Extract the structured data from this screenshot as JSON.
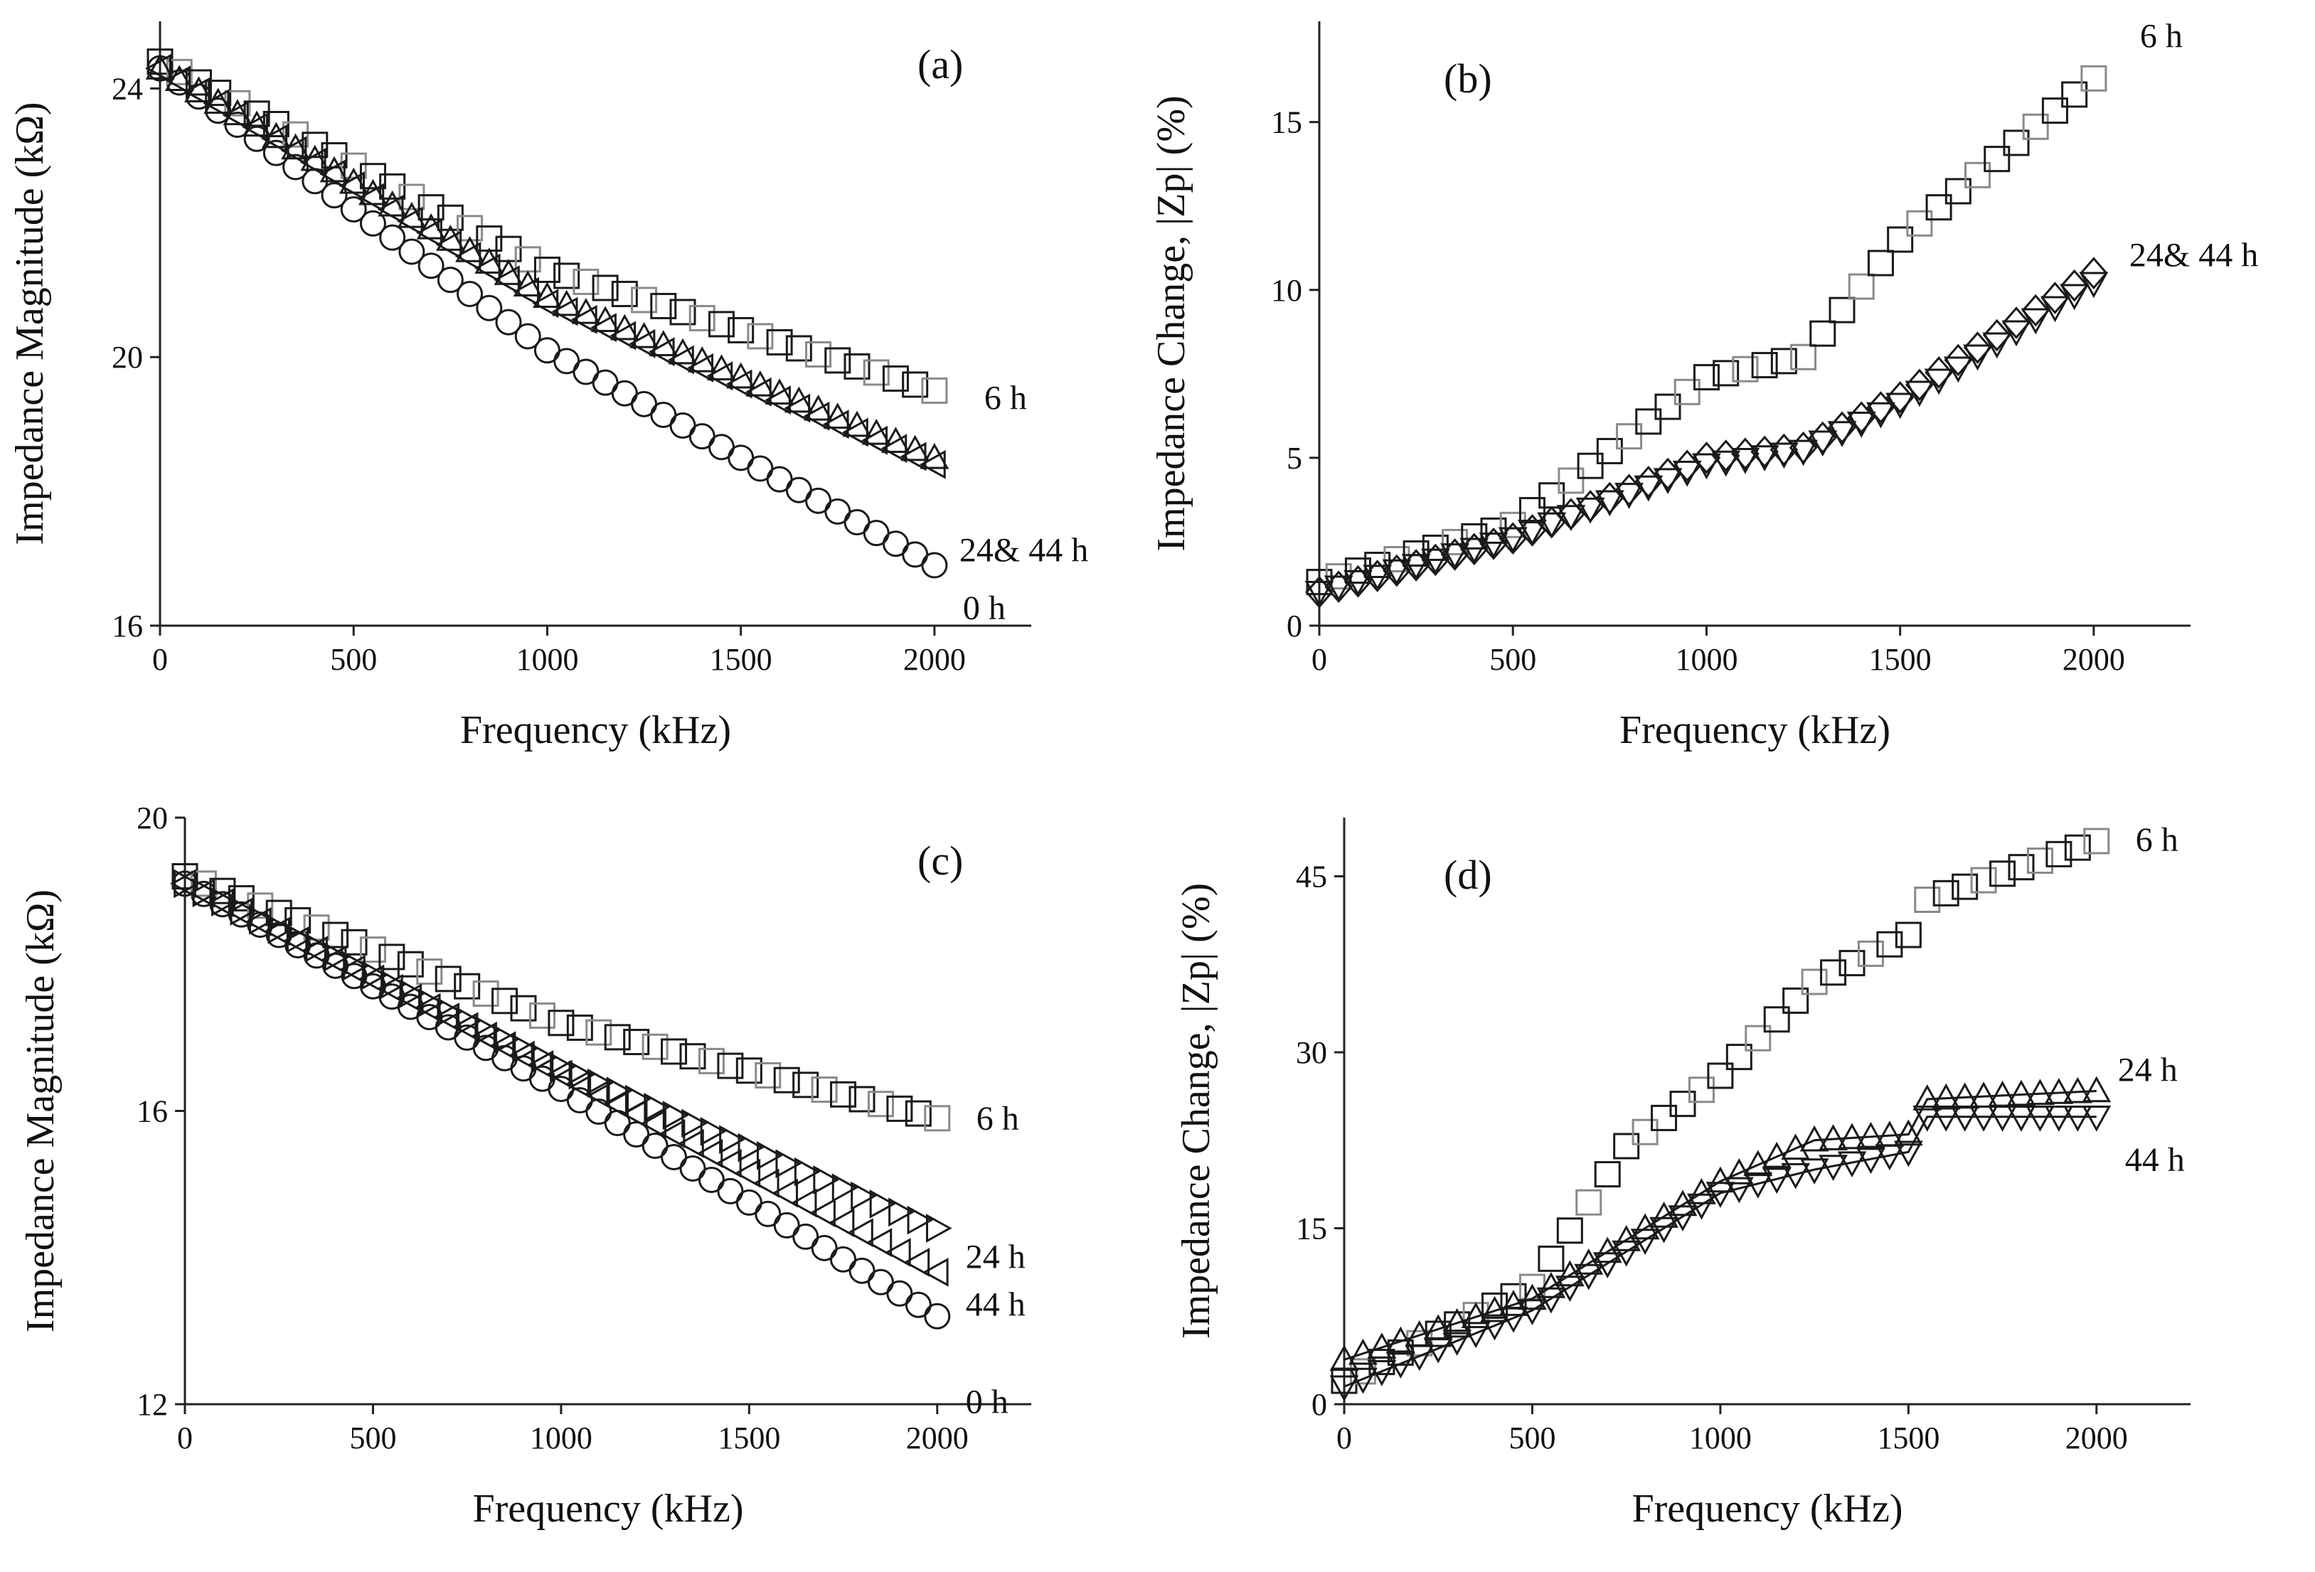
{
  "chart_data": [
    {
      "id": "a",
      "type": "scatter",
      "panel_label": "(a)",
      "xlabel": "Frequency (kHz)",
      "ylabel": "Impedance Magnitude (kΩ)",
      "xlim": [
        0,
        2250
      ],
      "ylim": [
        16,
        25
      ],
      "xticks": [
        "0",
        "500",
        "1000",
        "1500",
        "2000"
      ],
      "yticks": [
        "16",
        "20",
        "24"
      ],
      "series": [
        {
          "name": "0 h",
          "marker": "circle",
          "x": [
            0,
            2000
          ],
          "y": [
            24.3,
            16.9
          ],
          "mid": [
            [
              1000,
              20.1
            ]
          ],
          "label": "0 h"
        },
        {
          "name": "6 h",
          "marker": "square",
          "x": [
            0,
            2000
          ],
          "y": [
            24.4,
            19.5
          ],
          "mid": [
            [
              1000,
              21.3
            ]
          ],
          "label": "6 h"
        },
        {
          "name": "24 h",
          "marker": "triangle-up",
          "x": [
            0,
            2000
          ],
          "y": [
            24.3,
            18.5
          ],
          "mid": [
            [
              1000,
              20.9
            ]
          ],
          "label": ""
        },
        {
          "name": "44 h",
          "marker": "triangle-left",
          "x": [
            0,
            2000
          ],
          "y": [
            24.3,
            18.4
          ],
          "mid": [
            [
              1000,
              20.8
            ]
          ],
          "label": "24& 44 h"
        }
      ]
    },
    {
      "id": "b",
      "type": "scatter",
      "panel_label": "(b)",
      "xlabel": "Frequency (kHz)",
      "ylabel": "Impedance Change, |Zp| (%)",
      "xlim": [
        0,
        2250
      ],
      "ylim": [
        0,
        18
      ],
      "xticks": [
        "0",
        "500",
        "1000",
        "1500",
        "2000"
      ],
      "yticks": [
        "0",
        "5",
        "10",
        "15"
      ],
      "series": [
        {
          "name": "6 h",
          "marker": "square",
          "points": [
            [
              0,
              1.3
            ],
            [
              500,
              3.0
            ],
            [
              1000,
              7.4
            ],
            [
              1250,
              8.0
            ],
            [
              1500,
              11.5
            ],
            [
              2000,
              16.3
            ]
          ],
          "label": "6 h"
        },
        {
          "name": "24 h",
          "marker": "diamond",
          "points": [
            [
              0,
              1.0
            ],
            [
              500,
              2.6
            ],
            [
              1000,
              5.0
            ],
            [
              1250,
              5.3
            ],
            [
              1500,
              6.8
            ],
            [
              2000,
              10.5
            ]
          ],
          "label": ""
        },
        {
          "name": "44 h",
          "marker": "triangle-down",
          "points": [
            [
              0,
              1.0
            ],
            [
              500,
              2.6
            ],
            [
              1000,
              4.8
            ],
            [
              1250,
              5.2
            ],
            [
              1500,
              6.6
            ],
            [
              2000,
              10.2
            ]
          ],
          "label": "24& 44 h"
        }
      ]
    },
    {
      "id": "c",
      "type": "scatter",
      "panel_label": "(c)",
      "xlabel": "Frequency (kHz)",
      "ylabel": "Impedance Magnitude (kΩ)",
      "xlim": [
        0,
        2250
      ],
      "ylim": [
        12,
        20
      ],
      "xticks": [
        "0",
        "500",
        "1000",
        "1500",
        "2000"
      ],
      "yticks": [
        "12",
        "16",
        "20"
      ],
      "series": [
        {
          "name": "0 h",
          "marker": "circle",
          "x": [
            0,
            2000
          ],
          "y": [
            19.1,
            13.2
          ],
          "mid": [
            [
              1000,
              16.3
            ]
          ],
          "label": "0 h"
        },
        {
          "name": "6 h",
          "marker": "square",
          "x": [
            0,
            2000
          ],
          "y": [
            19.2,
            15.9
          ],
          "mid": [
            [
              1000,
              17.2
            ]
          ],
          "label": "6 h"
        },
        {
          "name": "24 h",
          "marker": "triangle-right",
          "x": [
            0,
            2000
          ],
          "y": [
            19.1,
            14.4
          ],
          "mid": [
            [
              1000,
              16.6
            ]
          ],
          "label": "24 h"
        },
        {
          "name": "44 h",
          "marker": "triangle-left",
          "x": [
            0,
            2000
          ],
          "y": [
            19.1,
            13.8
          ],
          "mid": [
            [
              1000,
              16.5
            ]
          ],
          "label": "44 h"
        }
      ]
    },
    {
      "id": "d",
      "type": "scatter",
      "panel_label": "(d)",
      "xlabel": "Frequency (kHz)",
      "ylabel": "Impedance Change, |Zp| (%)",
      "xlim": [
        0,
        2250
      ],
      "ylim": [
        0,
        50
      ],
      "xticks": [
        "0",
        "500",
        "1000",
        "1500",
        "2000"
      ],
      "yticks": [
        "0",
        "15",
        "30",
        "45"
      ],
      "series": [
        {
          "name": "6 h",
          "marker": "square",
          "points": [
            [
              0,
              2.0
            ],
            [
              500,
              10.0
            ],
            [
              750,
              22.0
            ],
            [
              1000,
              28.0
            ],
            [
              1250,
              36.0
            ],
            [
              1500,
              40.0
            ],
            [
              1550,
              43.0
            ],
            [
              2000,
              48.0
            ]
          ],
          "label": "6 h"
        },
        {
          "name": "24 h",
          "marker": "triangle-up",
          "points": [
            [
              0,
              3.8
            ],
            [
              500,
              9.0
            ],
            [
              1000,
              19.0
            ],
            [
              1250,
              22.5
            ],
            [
              1500,
              23.0
            ],
            [
              1550,
              26.0
            ],
            [
              2000,
              26.7
            ]
          ],
          "label": "24 h"
        },
        {
          "name": "44 h",
          "marker": "triangle-down",
          "points": [
            [
              0,
              1.5
            ],
            [
              500,
              8.0
            ],
            [
              1000,
              18.0
            ],
            [
              1250,
              20.0
            ],
            [
              1500,
              21.5
            ],
            [
              1550,
              24.5
            ],
            [
              2000,
              24.5
            ]
          ],
          "label": "44 h"
        }
      ]
    }
  ]
}
